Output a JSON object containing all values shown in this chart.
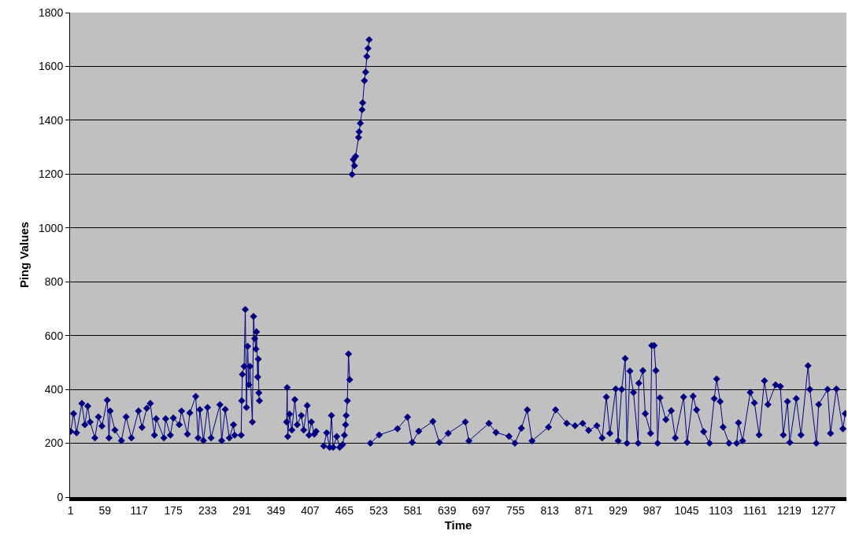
{
  "chart_data": {
    "type": "line",
    "xlabel": "Time",
    "ylabel": "Ping Values",
    "x": [
      1,
      6,
      11,
      20,
      25,
      30,
      34,
      42,
      48,
      54,
      63,
      66,
      68,
      76,
      87,
      95,
      104,
      116,
      122,
      130,
      136,
      143,
      146,
      159,
      162,
      170,
      175,
      185,
      189,
      199,
      203,
      213,
      217,
      220,
      226,
      233,
      239,
      254,
      257,
      263,
      270,
      277,
      279,
      290,
      291,
      292,
      295,
      297,
      299,
      301,
      303,
      305,
      309,
      311,
      313,
      315,
      316,
      318,
      319,
      320,
      321,
      340,
      367,
      368,
      369,
      372,
      376,
      381,
      385,
      392,
      396,
      402,
      405,
      409,
      414,
      417,
      424,
      430,
      435,
      440,
      443,
      446,
      452,
      457,
      462,
      465,
      467,
      468,
      470,
      472,
      474,
      476,
      478,
      480,
      482,
      484,
      489,
      490,
      492,
      495,
      496,
      499,
      501,
      503,
      505,
      507,
      508,
      509,
      524,
      555,
      572,
      580,
      591,
      615,
      626,
      641,
      670,
      676,
      710,
      722,
      744,
      754,
      765,
      775,
      783,
      811,
      823,
      842,
      856,
      869,
      879,
      893,
      902,
      909,
      915,
      925,
      929,
      935,
      941,
      944,
      949,
      955,
      963,
      964,
      971,
      975,
      984,
      986,
      990,
      993,
      996,
      1000,
      1010,
      1019,
      1026,
      1040,
      1046,
      1056,
      1062,
      1074,
      1084,
      1092,
      1096,
      1102,
      1107,
      1117,
      1130,
      1133,
      1140,
      1153,
      1160,
      1168,
      1177,
      1183,
      1196,
      1204,
      1209,
      1216,
      1220,
      1231,
      1239,
      1251,
      1254,
      1265,
      1269,
      1284,
      1289,
      1299,
      1310,
      1314
    ],
    "series": [
      {
        "color": "#000080",
        "values": [
          244,
          310,
          239,
          348,
          269,
          338,
          279,
          220,
          298,
          264,
          360,
          220,
          320,
          249,
          210,
          298,
          220,
          320,
          259,
          330,
          348,
          230,
          291,
          220,
          291,
          230,
          294,
          269,
          320,
          234,
          313,
          374,
          220,
          325,
          210,
          333,
          220,
          343,
          210,
          326,
          220,
          269,
          230,
          230,
          358,
          456,
          486,
          697,
          333,
          560,
          417,
          486,
          279,
          671,
          589,
          550,
          614,
          446,
          513,
          387,
          358,
          null,
          279,
          407,
          225,
          308,
          249,
          362,
          269,
          303,
          249,
          340,
          230,
          279,
          234,
          244,
          null,
          190,
          239,
          185,
          303,
          185,
          225,
          185,
          195,
          230,
          269,
          303,
          358,
          532,
          436,
          null,
          1199,
          1254,
          1231,
          1266,
          1336,
          1357,
          1389,
          1439,
          1465,
          1547,
          1579,
          1637,
          1667,
          1699,
          null,
          200,
          231,
          254,
          297,
          203,
          245,
          281,
          203,
          237,
          279,
          209,
          274,
          240,
          226,
          200,
          256,
          324,
          209,
          260,
          324,
          274,
          265,
          274,
          248,
          265,
          220,
          372,
          237,
          402,
          209,
          400,
          515,
          200,
          468,
          389,
          200,
          423,
          470,
          310,
          237,
          563,
          563,
          470,
          200,
          369,
          288,
          321,
          220,
          372,
          203,
          375,
          324,
          243,
          200,
          366,
          439,
          355,
          260,
          200,
          200,
          276,
          209,
          389,
          350,
          231,
          432,
          344,
          417,
          411,
          231,
          355,
          203,
          366,
          231,
          488,
          400,
          200,
          344,
          400,
          237,
          402,
          254,
          310
        ]
      }
    ],
    "xlim": [
      0,
      1316
    ],
    "xticks": [
      1,
      59,
      117,
      175,
      233,
      291,
      349,
      407,
      465,
      523,
      581,
      639,
      697,
      755,
      813,
      871,
      929,
      987,
      1045,
      1103,
      1161,
      1219,
      1277
    ],
    "ylim": [
      0,
      1800
    ],
    "yticks": [
      0,
      200,
      400,
      600,
      800,
      1000,
      1200,
      1400,
      1600,
      1800
    ],
    "grid": "y",
    "marker": "diamond",
    "line_style": "solid"
  }
}
